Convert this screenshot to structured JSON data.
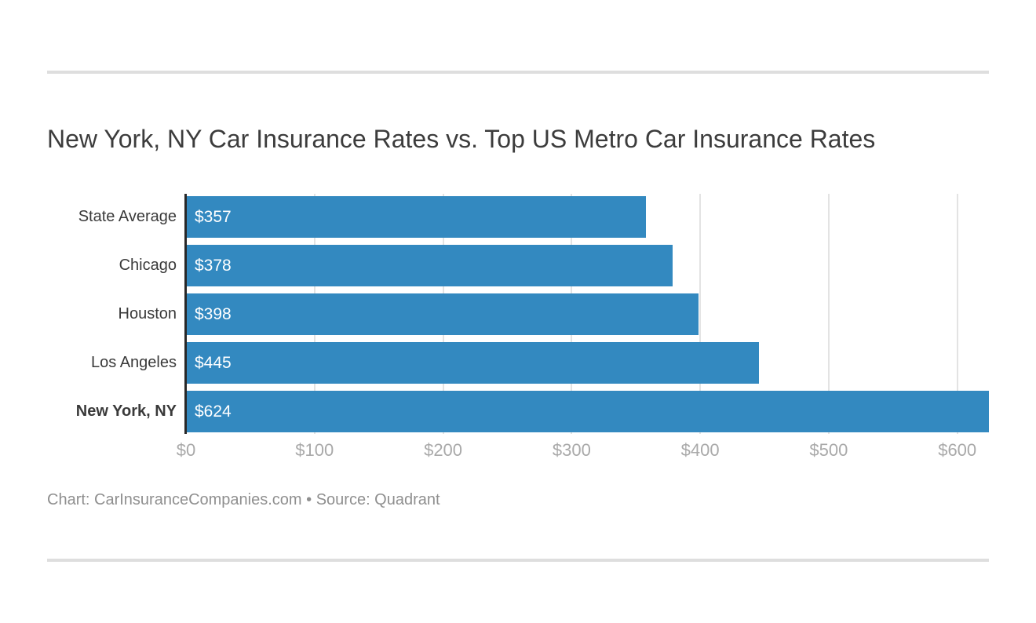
{
  "title": "New York, NY Car Insurance Rates vs. Top US Metro Car Insurance Rates",
  "caption": "Chart: CarInsuranceCompanies.com • Source: Quadrant",
  "colors": {
    "bar": "#3389c0",
    "bar_value_text": "#ffffff",
    "axis_line": "#282828",
    "gridline": "#e3e3e3",
    "tick_text": "#a9a9a9",
    "title_text": "#3c3c3c",
    "category_text": "#3a3a3a",
    "caption_text": "#8f8f8f",
    "divider": "#dedede"
  },
  "chart_data": {
    "type": "bar",
    "orientation": "horizontal",
    "title": "New York, NY Car Insurance Rates vs. Top US Metro Car Insurance Rates",
    "categories": [
      "State Average",
      "Chicago",
      "Houston",
      "Los Angeles",
      "New York, NY"
    ],
    "values": [
      357,
      378,
      398,
      445,
      624
    ],
    "value_labels": [
      "$357",
      "$378",
      "$398",
      "$445",
      "$624"
    ],
    "highlight_category": "New York, NY",
    "xlabel": "",
    "ylabel": "",
    "xlim": [
      0,
      624
    ],
    "x_ticks": [
      0,
      100,
      200,
      300,
      400,
      500,
      600
    ],
    "x_tick_labels": [
      "$0",
      "$100",
      "$200",
      "$300",
      "$400",
      "$500",
      "$600"
    ],
    "grid": "vertical-only",
    "legend": "none",
    "value_labels_inside_bars": true
  },
  "layout_note": "bars sorted ascending, New York NY highlighted bold"
}
